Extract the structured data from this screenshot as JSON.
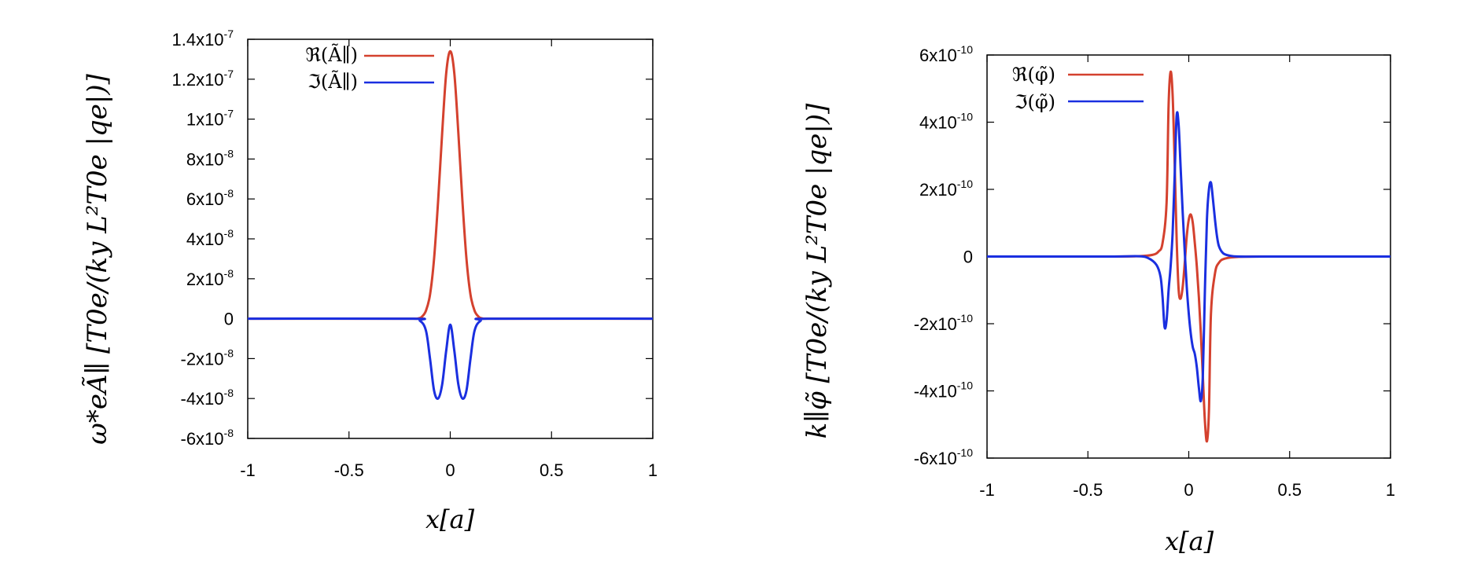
{
  "chart_data": [
    {
      "type": "line",
      "title": "",
      "xlabel": "x[a]",
      "ylabel": "ω*eÃ∥ [T0e/(ky L²T0e |qe|)]",
      "xlim": [
        -1,
        1
      ],
      "ylim": [
        -6e-08,
        1.4e-07
      ],
      "x_ticks": [
        -1,
        -0.5,
        0,
        0.5,
        1
      ],
      "x_tick_labels": [
        "-1",
        "-0.5",
        "0",
        "0.5",
        "1"
      ],
      "y_ticks": [
        -6e-08,
        -4e-08,
        -2e-08,
        0,
        2e-08,
        4e-08,
        6e-08,
        8e-08,
        1e-07,
        1.2e-07,
        1.4e-07
      ],
      "y_tick_labels": [
        {
          "base": "-6x10",
          "exp": "-8"
        },
        {
          "base": "-4x10",
          "exp": "-8"
        },
        {
          "base": "-2x10",
          "exp": "-8"
        },
        {
          "base": "0",
          "exp": ""
        },
        {
          "base": "2x10",
          "exp": "-8"
        },
        {
          "base": "4x10",
          "exp": "-8"
        },
        {
          "base": "6x10",
          "exp": "-8"
        },
        {
          "base": "8x10",
          "exp": "-8"
        },
        {
          "base": "1x10",
          "exp": "-7"
        },
        {
          "base": "1.2x10",
          "exp": "-7"
        },
        {
          "base": "1.4x10",
          "exp": "-7"
        }
      ],
      "grid": false,
      "legend_position": "top-left",
      "series": [
        {
          "name": "ℜ(Ã∥)",
          "color": "#d4412e",
          "x": [
            -1,
            -0.2,
            -0.16,
            -0.14,
            -0.12,
            -0.1,
            -0.08,
            -0.06,
            -0.04,
            -0.02,
            0,
            0.02,
            0.04,
            0.06,
            0.08,
            0.1,
            0.12,
            0.14,
            0.16,
            0.2,
            1
          ],
          "y": [
            0,
            0,
            1e-10,
            1e-09,
            4e-09,
            1.2e-08,
            3e-08,
            5.9e-08,
            9.3e-08,
            1.23e-07,
            1.34e-07,
            1.23e-07,
            9.3e-08,
            5.9e-08,
            3e-08,
            1.2e-08,
            4e-09,
            1e-09,
            1e-10,
            0,
            0
          ]
        },
        {
          "name": "ℑ(Ã∥)",
          "color": "#1a2fe0",
          "x": [
            -1,
            -0.2,
            -0.15,
            -0.12,
            -0.1,
            -0.08,
            -0.06,
            -0.04,
            -0.02,
            0,
            0.02,
            0.04,
            0.06,
            0.08,
            0.1,
            0.12,
            0.15,
            0.2,
            1
          ],
          "y": [
            0,
            0,
            -1e-09,
            -6e-09,
            -2e-08,
            -3.6e-08,
            -4e-08,
            -3.3e-08,
            -1.6e-08,
            -3e-09,
            -1.6e-08,
            -3.3e-08,
            -4e-08,
            -3.6e-08,
            -2e-08,
            -6e-09,
            -1e-09,
            0,
            0
          ]
        }
      ]
    },
    {
      "type": "line",
      "title": "",
      "xlabel": "x[a]",
      "ylabel": "k∥φ̃ [T0e/(ky L²T0e |qe|)]",
      "xlim": [
        -1,
        1
      ],
      "ylim": [
        -6e-10,
        6e-10
      ],
      "x_ticks": [
        -1,
        -0.5,
        0,
        0.5,
        1
      ],
      "x_tick_labels": [
        "-1",
        "-0.5",
        "0",
        "0.5",
        "1"
      ],
      "y_ticks": [
        -6e-10,
        -4e-10,
        -2e-10,
        0,
        2e-10,
        4e-10,
        6e-10
      ],
      "y_tick_labels": [
        {
          "base": "-6x10",
          "exp": "-10"
        },
        {
          "base": "-4x10",
          "exp": "-10"
        },
        {
          "base": "-2x10",
          "exp": "-10"
        },
        {
          "base": "0",
          "exp": ""
        },
        {
          "base": "2x10",
          "exp": "-10"
        },
        {
          "base": "4x10",
          "exp": "-10"
        },
        {
          "base": "6x10",
          "exp": "-10"
        }
      ],
      "grid": false,
      "legend_position": "top-left",
      "series": [
        {
          "name": "ℜ(φ̃)",
          "color": "#d4412e",
          "x": [
            -1,
            -0.4,
            -0.25,
            -0.18,
            -0.15,
            -0.13,
            -0.11,
            -0.1,
            -0.09,
            -0.08,
            -0.07,
            -0.06,
            -0.05,
            -0.04,
            -0.03,
            -0.02,
            -0.01,
            0,
            0.01,
            0.02,
            0.03,
            0.04,
            0.05,
            0.06,
            0.07,
            0.08,
            0.09,
            0.1,
            0.11,
            0.13,
            0.15,
            0.18,
            0.25,
            0.4,
            1
          ],
          "y": [
            0,
            0,
            1e-12,
            5e-12,
            1.5e-11,
            4e-11,
            1.6e-10,
            4.5e-10,
            5.5e-10,
            4.8e-10,
            2.8e-10,
            5e-11,
            -1e-10,
            -1.25e-10,
            -9e-11,
            -2e-11,
            6e-11,
            1.1e-10,
            1.25e-10,
            1e-10,
            4e-11,
            -3e-11,
            -1.2e-10,
            -2.3e-10,
            -3.6e-10,
            -4.9e-10,
            -5.5e-10,
            -4.6e-10,
            -1.7e-10,
            -5e-11,
            -1.8e-11,
            -6e-12,
            -1e-12,
            0,
            0
          ]
        },
        {
          "name": "ℑ(φ̃)",
          "color": "#1a2fe0",
          "x": [
            -1,
            -0.4,
            -0.25,
            -0.2,
            -0.16,
            -0.14,
            -0.13,
            -0.12,
            -0.11,
            -0.1,
            -0.09,
            -0.08,
            -0.07,
            -0.06,
            -0.05,
            -0.04,
            -0.03,
            -0.02,
            -0.01,
            0,
            0.01,
            0.02,
            0.03,
            0.04,
            0.05,
            0.06,
            0.07,
            0.08,
            0.09,
            0.1,
            0.11,
            0.12,
            0.13,
            0.14,
            0.15,
            0.17,
            0.2,
            0.25,
            0.4,
            1
          ],
          "y": [
            0,
            0,
            1e-12,
            -5e-12,
            -2.5e-11,
            -6e-11,
            -1.2e-10,
            -2.1e-10,
            -1.9e-10,
            -1e-10,
            -3e-11,
            7e-11,
            2.4e-10,
            4.2e-10,
            3.9e-10,
            2.6e-10,
            1.3e-10,
            1.5e-11,
            -9e-11,
            -1.7e-10,
            -2.3e-10,
            -2.7e-10,
            -2.9e-10,
            -3.3e-10,
            -3.9e-10,
            -4.3e-10,
            -3.5e-10,
            -1e-10,
            1.1e-10,
            2e-10,
            2.2e-10,
            1.7e-10,
            1.1e-10,
            6e-11,
            3e-11,
            1e-11,
            3e-12,
            0,
            0,
            0
          ]
        }
      ]
    }
  ]
}
